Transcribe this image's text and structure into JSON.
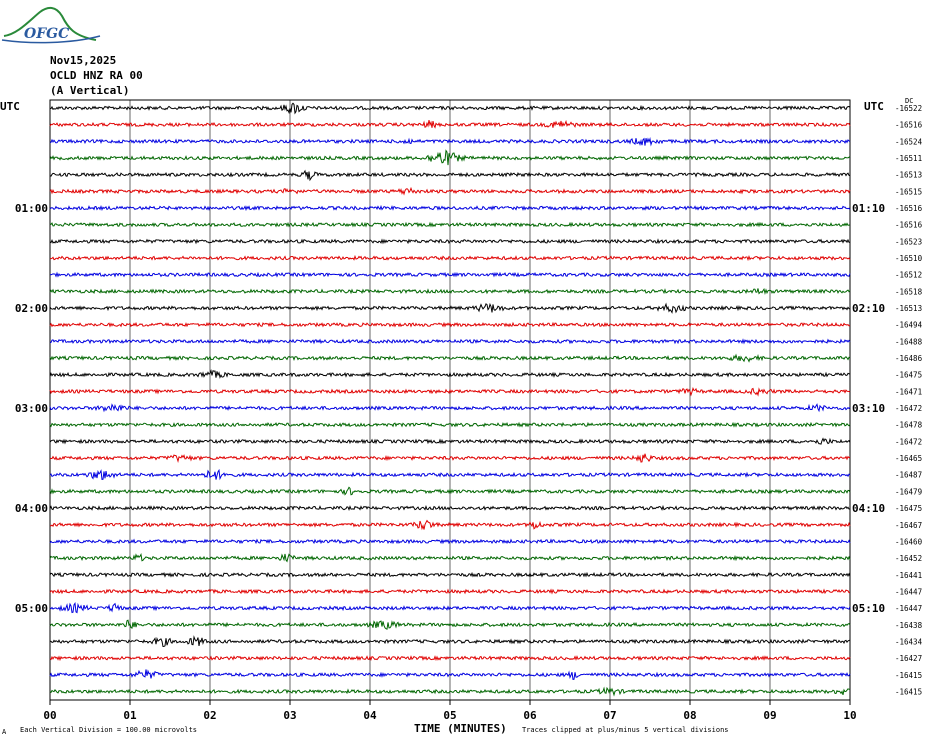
{
  "logo": {
    "text": "OFGC"
  },
  "header": {
    "date": "Nov15,2025",
    "station": "OCLD HNZ RA 00",
    "component": "(A Vertical)"
  },
  "utc_left": "UTC",
  "utc_right": "UTC",
  "dc_label": "DC",
  "footer": {
    "left_mark": "A",
    "scale": "Each Vertical Division =  100.00 microvolts",
    "xlabel": "TIME (MINUTES)",
    "clip": "Traces clipped at plus/minus 5 vertical divisions"
  },
  "colors": [
    "#000000",
    "#e00000",
    "#0000e0",
    "#006600"
  ],
  "chart_data": {
    "type": "line",
    "title": "OCLD HNZ RA 00",
    "xlabel": "TIME (MINUTES)",
    "ylabel": "",
    "xlim": [
      0,
      10
    ],
    "x_ticks": [
      "00",
      "01",
      "02",
      "03",
      "04",
      "05",
      "06",
      "07",
      "08",
      "09",
      "10"
    ],
    "grid": true,
    "left_time_labels": [
      {
        "row": 6,
        "label": "01:00"
      },
      {
        "row": 12,
        "label": "02:00"
      },
      {
        "row": 18,
        "label": "03:00"
      },
      {
        "row": 24,
        "label": "04:00"
      },
      {
        "row": 30,
        "label": "05:00"
      }
    ],
    "right_time_labels": [
      {
        "row": 6,
        "label": "01:10"
      },
      {
        "row": 12,
        "label": "02:10"
      },
      {
        "row": 18,
        "label": "03:10"
      },
      {
        "row": 24,
        "label": "04:10"
      },
      {
        "row": 30,
        "label": "05:10"
      }
    ],
    "dc_offsets": [
      -16522,
      -16516,
      -16524,
      -16511,
      -16513,
      -16515,
      -16516,
      -16516,
      -16523,
      -16510,
      -16512,
      -16518,
      -16513,
      -16494,
      -16488,
      -16486,
      -16475,
      -16471,
      -16472,
      -16478,
      -16472,
      -16465,
      -16487,
      -16479,
      -16475,
      -16467,
      -16460,
      -16452,
      -16441,
      -16447,
      -16447,
      -16438,
      -16434,
      -16427,
      -16415,
      -16415
    ],
    "trace_count": 36,
    "minutes_per_trace": 10
  }
}
